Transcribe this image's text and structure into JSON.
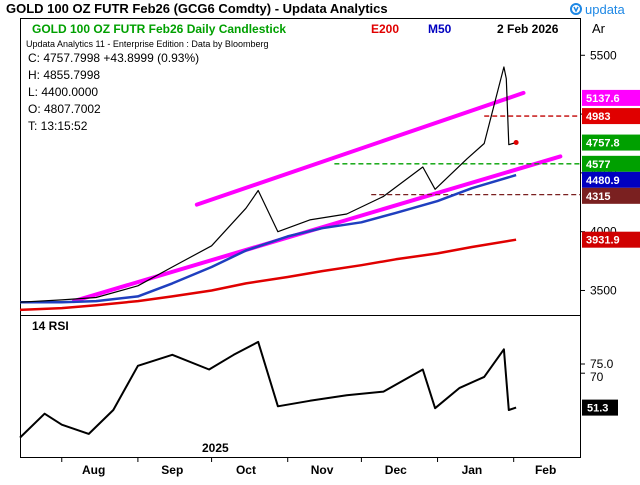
{
  "window": {
    "title": "GOLD 100 OZ FUTR  Feb26 (GCG6 Comdty) -   Updata Analytics",
    "brand": "updata"
  },
  "legend": {
    "name": "GOLD 100 OZ FUTR  Feb26 Daily Candlestick",
    "e200": "E200",
    "m50": "M50",
    "date": "2 Feb 2026",
    "scale": "Ar",
    "subtitle": "Updata Analytics 11 - Enterprise Edition : Data by Bloomberg",
    "colors": {
      "name": "#00a000",
      "e200": "#e00000",
      "m50": "#0000c0",
      "candle_up": "#00a000",
      "candle_down": "#e00000"
    }
  },
  "ohlc": {
    "close": "C: 4757.7998  +43.8999 (0.93%)",
    "high": "H: 4855.7998",
    "low": "L: 4400.0000",
    "open": "O: 4807.7002",
    "time": "T: 13:15:52"
  },
  "price_tags": [
    {
      "text": "5137.6",
      "value": 5137.6,
      "color": "#ff00ff"
    },
    {
      "text": "4983",
      "value": 4983,
      "color": "#e00000"
    },
    {
      "text": "4757.8",
      "value": 4757.8,
      "color": "#00a000"
    },
    {
      "text": "4577",
      "value": 4577,
      "color": "#00a000"
    },
    {
      "text": "4480.9",
      "value": 4480.9,
      "color": "#0000c0"
    },
    {
      "text": "4315",
      "value": 4315,
      "color": "#7a2020"
    },
    {
      "text": "3931.9",
      "value": 3931.9,
      "color": "#d00000"
    }
  ],
  "rsi": {
    "label": "14 RSI",
    "value_tag": "51.3",
    "level_75": "75.0",
    "level_70": "70"
  },
  "xaxis": {
    "year": "2025",
    "months": [
      "Aug",
      "Sep",
      "Oct",
      "Nov",
      "Dec",
      "Jan",
      "Feb"
    ]
  },
  "chart_data": [
    {
      "type": "line",
      "title": "GOLD 100 OZ FUTR  Feb26 Daily Candlestick",
      "yaxis_ticks": [
        3500,
        4000,
        4500,
        5000,
        5500
      ],
      "ylim": [
        3300,
        5800
      ],
      "x_months": [
        "Aug",
        "Sep",
        "Oct",
        "Nov",
        "Dec",
        "Jan",
        "Feb"
      ],
      "grid": false,
      "series": [
        {
          "name": "E200",
          "x": [
            "2025-07-15",
            "2025-08-01",
            "2025-08-15",
            "2025-09-01",
            "2025-09-15",
            "2025-10-01",
            "2025-10-15",
            "2025-11-01",
            "2025-11-15",
            "2025-12-01",
            "2025-12-15",
            "2026-01-01",
            "2026-01-15",
            "2026-02-02"
          ],
          "values": [
            3335,
            3350,
            3375,
            3410,
            3450,
            3500,
            3560,
            3615,
            3665,
            3715,
            3765,
            3815,
            3870,
            3932
          ]
        },
        {
          "name": "M50",
          "x": [
            "2025-07-15",
            "2025-08-01",
            "2025-08-15",
            "2025-09-01",
            "2025-09-15",
            "2025-10-01",
            "2025-10-15",
            "2025-11-01",
            "2025-11-15",
            "2025-12-01",
            "2025-12-15",
            "2026-01-01",
            "2026-01-15",
            "2026-02-02"
          ],
          "values": [
            3400,
            3400,
            3410,
            3450,
            3560,
            3700,
            3840,
            3960,
            4030,
            4080,
            4160,
            4260,
            4370,
            4481
          ]
        },
        {
          "name": "Close",
          "x": [
            "2025-07-15",
            "2025-08-01",
            "2025-08-15",
            "2025-09-01",
            "2025-09-15",
            "2025-10-01",
            "2025-10-15",
            "2025-10-20",
            "2025-10-28",
            "2025-11-10",
            "2025-11-25",
            "2025-12-10",
            "2025-12-26",
            "2025-12-31",
            "2026-01-13",
            "2026-01-20",
            "2026-01-28",
            "2026-01-29",
            "2026-01-30",
            "2026-02-02"
          ],
          "values": [
            3400,
            3420,
            3440,
            3540,
            3700,
            3880,
            4200,
            4350,
            4000,
            4100,
            4150,
            4300,
            4550,
            4360,
            4620,
            4750,
            5400,
            5300,
            4740,
            4758
          ]
        }
      ],
      "trendlines": [
        {
          "name": "upper",
          "from": [
            "2025-09-25",
            4230
          ],
          "to": [
            "2026-02-05",
            5180
          ]
        },
        {
          "name": "lower",
          "from": [
            "2025-08-06",
            3410
          ],
          "to": [
            "2026-02-20",
            4640
          ]
        }
      ],
      "hlines": [
        4983,
        4577,
        4315
      ]
    },
    {
      "type": "line",
      "title": "14 RSI",
      "ylim": [
        25,
        100
      ],
      "levels": [
        75,
        70
      ],
      "series": [
        {
          "name": "14 RSI",
          "x": [
            "2025-07-15",
            "2025-07-25",
            "2025-08-01",
            "2025-08-12",
            "2025-08-22",
            "2025-09-01",
            "2025-09-15",
            "2025-09-30",
            "2025-10-10",
            "2025-10-20",
            "2025-10-28",
            "2025-11-10",
            "2025-11-25",
            "2025-12-10",
            "2025-12-26",
            "2025-12-31",
            "2026-01-10",
            "2026-01-20",
            "2026-01-28",
            "2026-01-30",
            "2026-02-02"
          ],
          "values": [
            35,
            48,
            42,
            37,
            50,
            74,
            80,
            72,
            80,
            87,
            52,
            55,
            58,
            60,
            72,
            51,
            62,
            68,
            83,
            50,
            51.3
          ]
        }
      ]
    }
  ]
}
